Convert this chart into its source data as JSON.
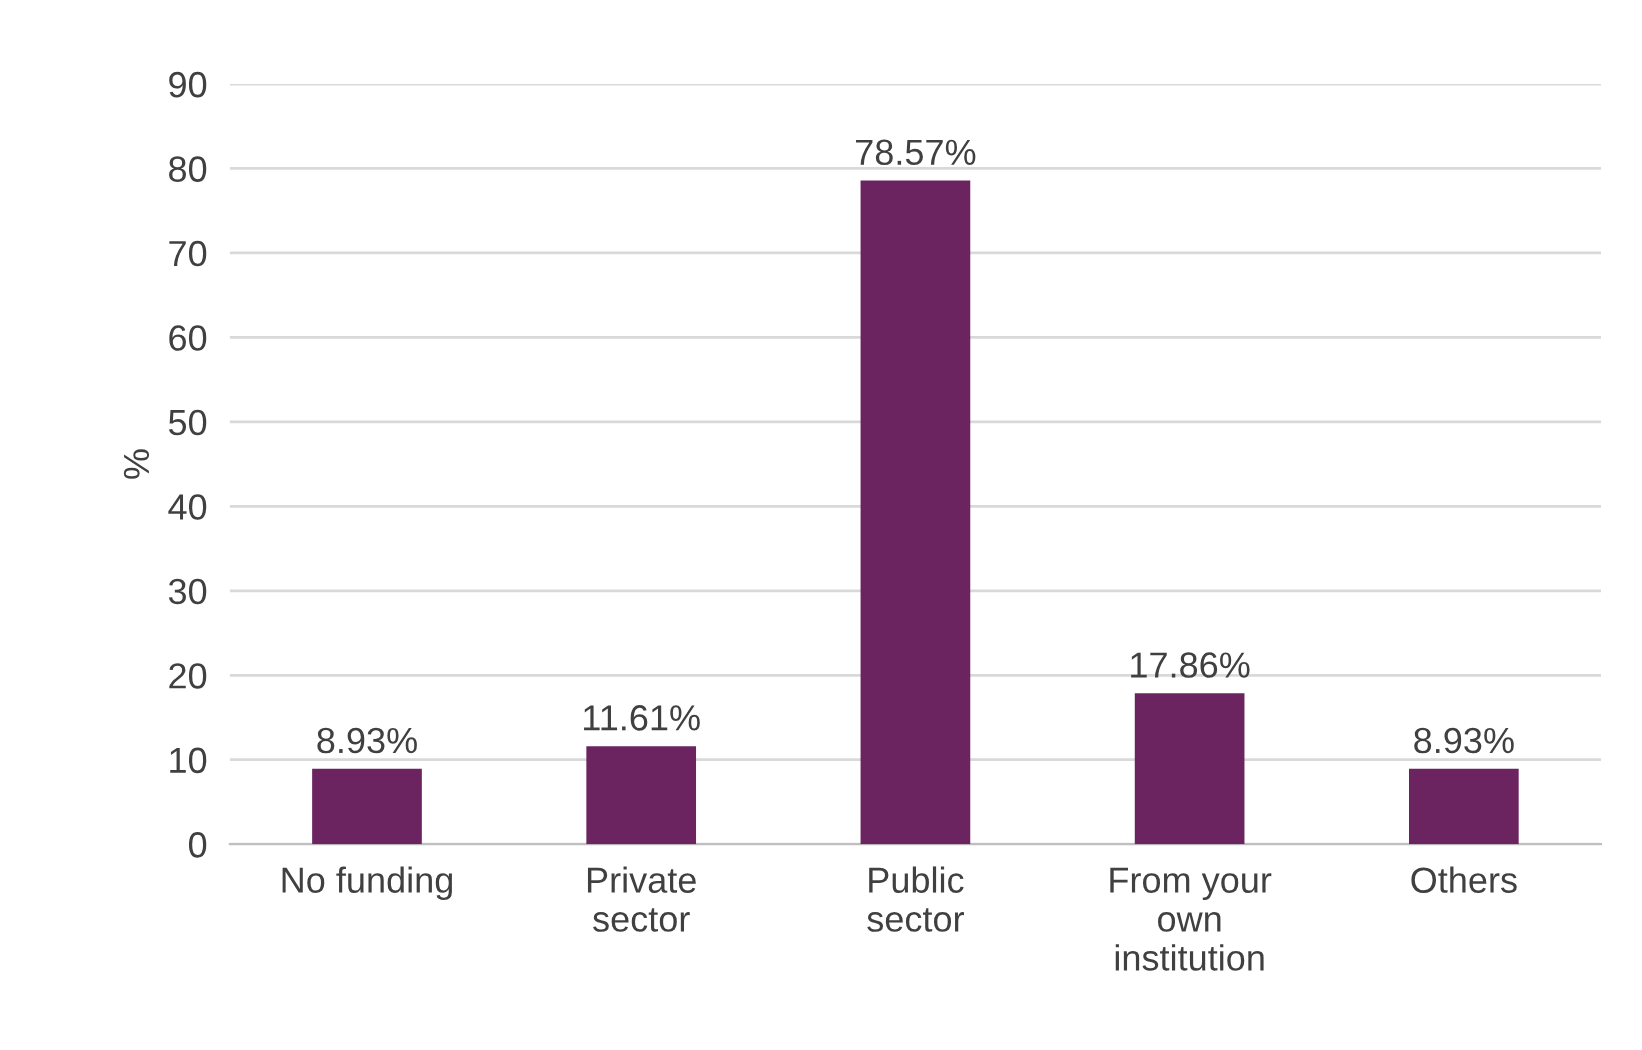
{
  "chart_data": {
    "type": "bar",
    "ylabel": "%",
    "categories": [
      "No funding",
      "Private\nsector",
      "Public\nsector",
      "From your\nown\ninstitution",
      "Others"
    ],
    "series": [
      {
        "color": "#6b2460",
        "values": [
          8.93,
          11.61,
          78.57,
          17.86,
          8.93
        ],
        "value_labels": [
          "8.93%",
          "11.61%",
          "78.57%",
          "17.86%",
          "8.93%"
        ]
      }
    ],
    "ylim": [
      0,
      90
    ],
    "yticks": [
      0,
      10,
      20,
      30,
      40,
      50,
      60,
      70,
      80,
      90
    ],
    "grid": "y",
    "legend": false
  }
}
